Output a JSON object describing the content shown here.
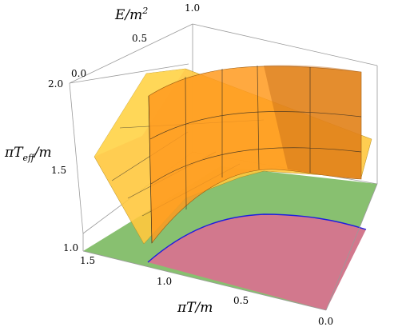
{
  "chart_data": {
    "type": "surface3d",
    "axes": {
      "x": {
        "label": "πT/m",
        "range": [
          0.0,
          1.5
        ],
        "ticks": [
          "1.5",
          "1.0",
          "0.5",
          "0.0"
        ]
      },
      "y": {
        "label": "E/m²",
        "range": [
          0.0,
          1.0
        ],
        "ticks": [
          "0.0",
          "0.5",
          "1.0"
        ]
      },
      "z": {
        "label": "πT_eff/m",
        "range": [
          1.0,
          2.0
        ],
        "ticks": [
          "1.0",
          "1.5",
          "2.0"
        ]
      }
    },
    "surfaces": [
      {
        "name": "",
        "color": "#ffc23a",
        "note": "lighter yellow sheet, rising toward high πT/m"
      },
      {
        "name": "",
        "color": "#ff9d22",
        "note": "orange curved sheet with mesh lines"
      }
    ],
    "floor_regions": [
      {
        "color": "#88c070"
      },
      {
        "color": "#d97b93"
      }
    ],
    "boundary_curve": {
      "color": "#1d1de0"
    },
    "grid": false,
    "legend": false
  },
  "labels": {
    "x_title": "πT/m",
    "y_title_base": "E/m",
    "y_title_exp": "2",
    "z_title_main": "πT",
    "z_title_sub": "eff",
    "z_title_tail": "/m"
  }
}
